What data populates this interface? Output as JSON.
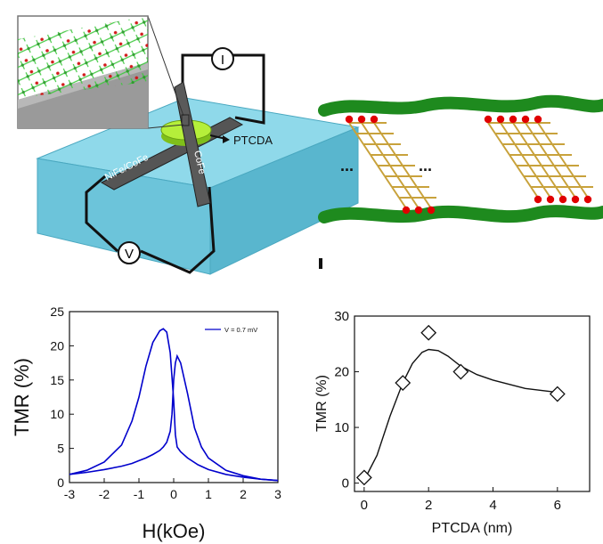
{
  "device": {
    "label_ptcda": "PTCDA",
    "label_nife": "NiFe/CoFe",
    "label_cofe": "CoFe",
    "meter_current": "I",
    "meter_voltage": "V"
  },
  "junction": {
    "ellipsis_left": "...",
    "ellipsis_right": "..."
  },
  "colors": {
    "substrate": "#7fd3e6",
    "ptcda_disk": "#a6e22e",
    "electrode": "#4a4a4a",
    "green_layer": "#1e8a1e",
    "atom_red": "#e00000",
    "bond_gold": "#c8a23c",
    "curve_blue": "#0000cc"
  },
  "chart_data": [
    {
      "type": "line",
      "xlabel": "H(kOe)",
      "ylabel": "TMR (%)",
      "xlim": [
        -3,
        3
      ],
      "ylim": [
        0,
        25
      ],
      "xticks": [
        -3,
        -2,
        -1,
        0,
        1,
        2,
        3
      ],
      "yticks": [
        0,
        5,
        10,
        15,
        20,
        25
      ],
      "legend_position": "top-right",
      "series": [
        {
          "name": "V = 0.7 mV",
          "branches": [
            {
              "x": [
                -3.0,
                -2.5,
                -2.0,
                -1.5,
                -1.2,
                -1.0,
                -0.8,
                -0.6,
                -0.4,
                -0.3,
                -0.2,
                -0.1,
                -0.05,
                0.0,
                0.05,
                0.1,
                0.2,
                0.4,
                0.6,
                0.8,
                1.0,
                1.5,
                2.0,
                2.5,
                3.0
              ],
              "y": [
                1.2,
                1.5,
                1.9,
                2.4,
                2.8,
                3.2,
                3.6,
                4.1,
                4.7,
                5.2,
                5.9,
                7.5,
                10.0,
                15.0,
                17.5,
                18.5,
                17.5,
                13.0,
                8.0,
                5.2,
                3.6,
                1.8,
                1.0,
                0.5,
                0.3
              ]
            },
            {
              "x": [
                -3.0,
                -2.5,
                -2.0,
                -1.5,
                -1.2,
                -1.0,
                -0.8,
                -0.6,
                -0.4,
                -0.3,
                -0.2,
                -0.1,
                0.0,
                0.05,
                0.1,
                0.2,
                0.4,
                0.7,
                1.0,
                1.5,
                2.0,
                2.5,
                3.0
              ],
              "y": [
                1.2,
                1.8,
                3.0,
                5.5,
                9.0,
                12.5,
                17.0,
                20.5,
                22.2,
                22.5,
                22.0,
                19.0,
                12.0,
                7.0,
                5.2,
                4.5,
                3.6,
                2.6,
                1.9,
                1.2,
                0.8,
                0.5,
                0.3
              ]
            }
          ]
        }
      ]
    },
    {
      "type": "scatter",
      "xlabel": "PTCDA (nm)",
      "ylabel": "TMR (%)",
      "xlim": [
        -0.3,
        7
      ],
      "ylim": [
        -1.5,
        30
      ],
      "xticks": [
        0,
        2,
        4,
        6
      ],
      "yticks": [
        0,
        10,
        20,
        30
      ],
      "points": {
        "x": [
          0,
          1.2,
          2,
          3,
          6
        ],
        "y": [
          1,
          18,
          27,
          20,
          16
        ]
      },
      "fit": {
        "x": [
          0,
          0.4,
          0.8,
          1.2,
          1.5,
          1.8,
          2.0,
          2.3,
          2.6,
          3.0,
          3.5,
          4.0,
          5.0,
          6.0
        ],
        "y": [
          0.5,
          5,
          12,
          18,
          21.5,
          23.5,
          24,
          23.8,
          22.8,
          21,
          19.5,
          18.5,
          17,
          16.3
        ]
      }
    }
  ]
}
